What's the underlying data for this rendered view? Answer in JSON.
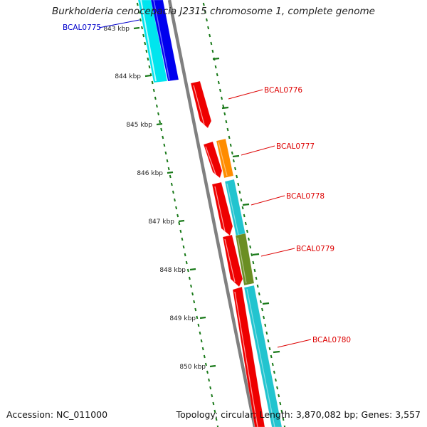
{
  "title": "Burkholderia cenocepacia J2315 chromosome 1, complete genome",
  "footer": {
    "accession": "Accession: NC_011000",
    "summary": "Topology: circular; Length: 3,870,082 bp; Genes: 3,557"
  },
  "colors": {
    "backbone": "#808080",
    "tick": "#1a7a1a",
    "blue": "#0000ee",
    "cyan": "#22c4cf",
    "bright_cyan": "#00e5ee",
    "red": "#ee0000",
    "orange": "#ff8c00",
    "olive": "#6b8e23"
  },
  "scale": {
    "unit": "kbp",
    "ticks": [
      {
        "label": "843 kbp"
      },
      {
        "label": "844 kbp"
      },
      {
        "label": "845 kbp"
      },
      {
        "label": "846 kbp"
      },
      {
        "label": "847 kbp"
      },
      {
        "label": "848 kbp"
      },
      {
        "label": "849 kbp"
      },
      {
        "label": "850 kbp"
      }
    ]
  },
  "gene_labels": [
    {
      "name": "BCAL0775",
      "color": "#0000cc"
    },
    {
      "name": "BCAL0776",
      "color": "#dd0000"
    },
    {
      "name": "BCAL0777",
      "color": "#dd0000"
    },
    {
      "name": "BCAL0778",
      "color": "#dd0000"
    },
    {
      "name": "BCAL0779",
      "color": "#dd0000"
    },
    {
      "name": "BCAL0780",
      "color": "#dd0000"
    }
  ]
}
